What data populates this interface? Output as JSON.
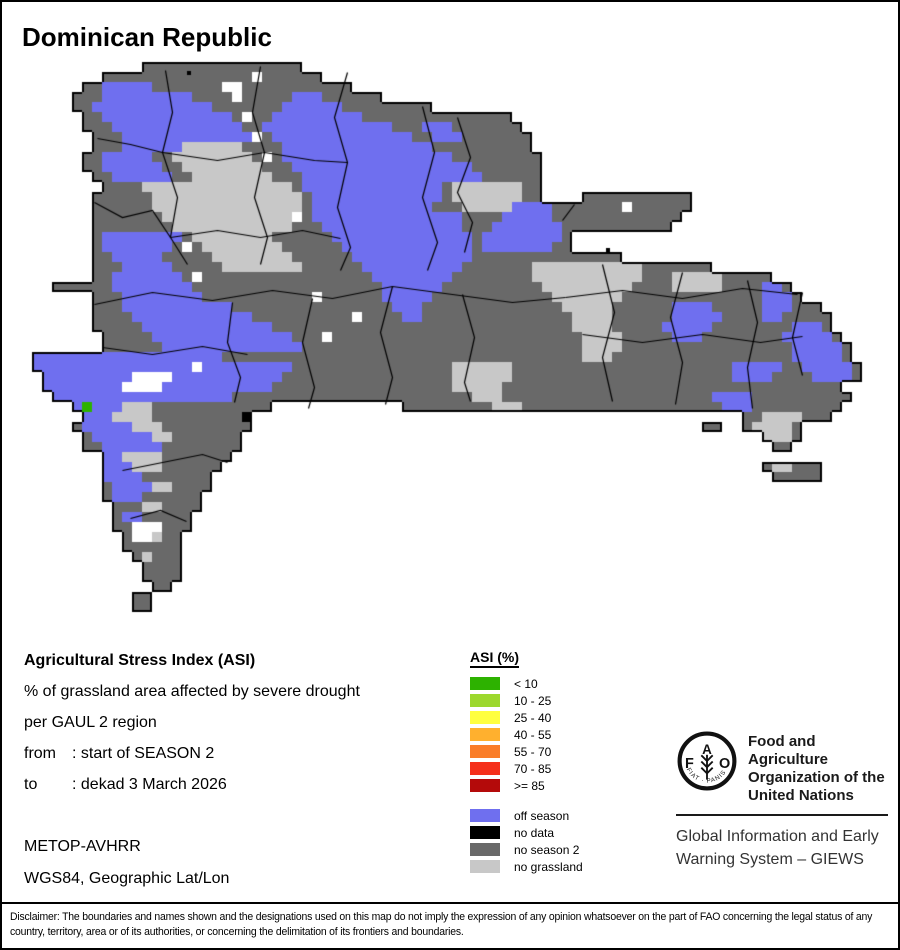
{
  "title": "Dominican Republic",
  "info": {
    "title": "Agricultural Stress Index (ASI)",
    "line1": "% of grassland area affected by severe drought",
    "line2": "per GAUL 2 region",
    "from_label": "from",
    "from_value": ": start of SEASON 2",
    "to_label": "to",
    "to_value": ": dekad 3 March 2026",
    "sensor": "METOP-AVHRR",
    "projection": "WGS84, Geographic Lat/Lon"
  },
  "legend": {
    "title": "ASI (%)",
    "classes": [
      {
        "color": "#2DB200",
        "label": "< 10"
      },
      {
        "color": "#9CD82E",
        "label": "10 - 25"
      },
      {
        "color": "#FFFF40",
        "label": "25 - 40"
      },
      {
        "color": "#FFB02E",
        "label": "40 - 55"
      },
      {
        "color": "#FA7D28",
        "label": "55 - 70"
      },
      {
        "color": "#F5301B",
        "label": "70 - 85"
      },
      {
        "color": "#B40A0A",
        "label": ">= 85"
      }
    ],
    "extra": [
      {
        "color": "#6F6FEF",
        "label": "off season"
      },
      {
        "color": "#000000",
        "label": "no data"
      },
      {
        "color": "#696969",
        "label": "no season 2"
      },
      {
        "color": "#C8C8C8",
        "label": "no grassland"
      }
    ]
  },
  "fao": {
    "letter_f": "F",
    "letter_a": "A",
    "letter_o": "O",
    "motto": "FIAT · PANIS",
    "org_line1": "Food and Agriculture",
    "org_line2": "Organization of the",
    "org_line3": "United Nations",
    "giews_line1": "Global Information and Early",
    "giews_line2": "Warning System – GIEWS"
  },
  "disclaimer": "Disclaimer: The boundaries and names shown and the designations used on this map do not imply the expression of any opinion whatsoever on the part of FAO concerning the legal status of any country, territory, area or of its authorities, or concerning the delimitation of its frontiers and boundaries.",
  "map": {
    "cell": 10,
    "ox": 20,
    "oy": 5,
    "coast_color": "#000000",
    "border_color": "#000000",
    "colors": {
      "D": "#696969",
      "L": "#C8C8C8",
      "B": "#6F6FEF",
      "W": "#FFFFFF",
      "G": "#2DB200",
      "N": "#000000"
    },
    "grid": [
      "............DDDDDDDDDDDDDDDD..........................................................",
      "........DDDDDDDDDDDDDDDWDDDDDD........................................................",
      "......DDBBBBBDDDDDDDWWDDDDDDDDDDD.....................................................",
      ".....DDDBBBBBBBBBDDDDWDDDDDBBBDDDDDD..................................................",
      ".....DDBBBBBBBBBBBBDDDDDDDBBBBBBDDDDDDDDD.............................................",
      "......DDBBBBBBBBBBBBBDWDDBBBBBBBBBDDDDDDDDDDDDDDD.....................................",
      "......DDDBBBBBBBBBBBBBDDBBBBBBBBBBBBBDDDBBBDDDDDDD....................................",
      ".......DDDBBBBBBBBBBBBBWDBBBBBBBBBBBBBBDDBBBDDDDDDD...................................",
      ".......DDDBBBBBBLLLLLLDDDDBBBBBBBBBBBBBBBDDDDDDDDDD...................................",
      "......DDBBBBBDDLLLLLLLLDWDBBBBBBBBBBBBBBBBBDDDDDDDDD..................................",
      "......DDBBBBBBDDLLLLLLLLDDDBBBBBBBBBBBBBBBBBBDDDDDDD..................................",
      ".......DDBBBBBBDDLLLLLLLLDDDBBBBBBBBBBBBBBBBBBDDDDDD..................................",
      "........DDDDLLLLLLLLLLLLLLLDBBBBBBBBBBBBBBDLLLLLLLDD..................................",
      ".......DDDDDDLLLLLLLLLLLLLLLDBBBBBBBBBBBBBDLLLLLLLDD....DDDDDDDDDDD...................",
      ".......DDDDDDLLLLLLLLLLLLLLLDBBBBBBBBBBBBDDDLLLLLBBBBDDDDDDDWDDDDDD...................",
      ".......DDDDDDDLLLLLLLLLLLLLWDBBBBBBBBBBBBBBBDDDDBBBBBDDDDDDDDDDDDD....................",
      ".......DDDDDDDDLLLLLLLLLLLLDDDBBBBBBBBBBBBBBDDDBBBBBBBDDDDDDDDDDD.....................",
      ".......DBBBBBBBBDLLLLLLLLDDDDDDBBBBBBBBBBBBBBDBBBBBBBBD...............................",
      ".......DBBBBBBBDWDLLLLLLLLDDDDDDBBBBBBBBBBBBBDBBBBBBBDD...............................",
      ".......DDBBBBBDDDDDLLLLLLLLDDDDDDBBBBBBBBBBBBDDDDDDDDDDDDDDD..........................",
      ".......DDDBBBBBDDDDDLLLLLLLLDDDDDDBBBBBBBBBBDDDDDDDLLLLLLLLLLLDDDDDDD.................",
      ".......DDBBBBBBBDWDDDDDDDDDDDDDDDDDBBBBBBBBDDDDDDDDLLLLLLLLLLLDDDLLLLLDDDDD...........",
      "...DDDDDDBBBBBBBBDDDDDDDDDDDDDDDDDDDBBBBBBDDDDDDDDDDLLLLLLLLLDDDDLLLLLDDDDBBD.........",
      ".......DDDBBBBBBBBDDDDDDDDDDDWDDDDDDBBBBBDDDDDDDDDDDDLLLLLLLDDDDDDDDDDDDDDBBBD........",
      ".......DDDBBBBBBBBBBBDDDDDDDDDDDDDDDDBBBDDDDDDDDDDDDDDLLLLLDDDDDDBBBBDDDDDBBBDDD......",
      ".......DDDDBBBBBBBBBBBBDDDDDDDDDDWDDDDBBDDDDDDDDDDDDDDDLLLLDDDDDDBBBBBDDDDBBDDDDD.....",
      ".......DDDDDBBBBBBBBBBBBBDDDDDDDDDDDDDDDDDDDDDDDDDDDDDDLLLLDDDDDBBBBBDDDDDDDDBBBD....",
      "........DDDDDBBBBBBBBBBBBBBDDDWDDDDDDDDDDDDDDDDDDDDDDDDDLLLLDDDDDBBBDDDDDDDDBBBBBD...",
      "........DDDDDDBBBBBBBBBBBBBBDDDDDDDDDDDDDDDDDDDDDDDDDDDDLLLLDDDDDDDDDDDDDDDDDBBBBBD..",
      ".BBBBBBBBBBBBBBBBBBBDDDDDDDDDDDDDDDDDDDDDDDDDDDDDDDDDDDDLLLDDDDDDDDDDDDDDDDDDBBBBBD..",
      ".BBBBBBBBBBBBBBBBWBBBBBBBBBDDDDDDDDDDDDDDDDLLLLLLDDDDDDDDDDDDDDDDDDDDDDBBBBBDDBBBBBD.",
      "..BBBBBBBBBWWWWBBBBBBBBBBBDDDDDDDDDDDDDDDDDLLLLLLDDDDDDDDDDDDDDDDDDDDDDBBBBDDDDBBBBD.",
      "..BBBBBBBBWWWWBBBBBBBBBBBDDDDDDDDDDDDDDDDDDLLLLLDDDDDDDDDDDDDDDDDDDDDDDDDDDDDDDDDD...",
      "...BBBBBBBBBBBBBBBBBBDDDDDDDDDDDDDDDDDDDDDDDDLLLDDDDDDDDDDDDDDDDDDDDDBBBBDDDDDDDDDD..",
      ".....BGBBBLLLDDDDDDDDDDDD.............DDDDDDDDDLLLDDDDDDDDDDDDDDDDDDDDBBBDDDDDDDDD....",
      "......BBBLLLLDDDDDDDDDN.................................................DDLLLLDDD.....",
      ".....DBBBBBLLLDDDDDDDDD.............................................DD..DLLLLD........",
      "......DBBBBBBLLDDDDDDD....................................................LLLD........",
      "......DDBBBBBBDDDDDDDD.....................................................DD.........",
      "........BBLLLLDDDDDDD.................................................................",
      "........BBBLLLDDDDDD......................................................DLLDDD......",
      "........BBBBDDDDDDD........................................................DDDDD......",
      "........DBBBBLLDDDD...................................................................",
      "........DBBBDDDDDD....................................................................",
      ".........DDDLLDDDD....................................................................",
      ".........DBBDDDDD.....................................................................",
      ".........DDWWWDDD.....................................................................",
      "..........DWWLDD......................................................................",
      "..........DDDDDD......................................................................",
      "...........DLDDD......................................................................",
      "............DDDD......................................................................",
      "............DDDD......................................................................",
      ".............DD.......................................................................",
      "...........DD.........................................................................",
      "...........DD.........................................................................",
      "......................................................................................",
      "......................................................................................",
      "......................................................................................"
    ],
    "borders": [
      [
        [
          163,
          68
        ],
        [
          170,
          110
        ],
        [
          160,
          150
        ],
        [
          175,
          195
        ],
        [
          168,
          235
        ],
        [
          185,
          262
        ]
      ],
      [
        [
          258,
          64
        ],
        [
          250,
          110
        ],
        [
          262,
          150
        ],
        [
          252,
          195
        ],
        [
          265,
          235
        ],
        [
          258,
          262
        ]
      ],
      [
        [
          345,
          70
        ],
        [
          332,
          115
        ],
        [
          345,
          160
        ],
        [
          335,
          205
        ],
        [
          348,
          245
        ],
        [
          338,
          268
        ]
      ],
      [
        [
          420,
          104
        ],
        [
          432,
          150
        ],
        [
          420,
          195
        ],
        [
          435,
          240
        ],
        [
          425,
          268
        ]
      ],
      [
        [
          455,
          115
        ],
        [
          468,
          155
        ],
        [
          455,
          190
        ],
        [
          470,
          220
        ],
        [
          462,
          250
        ]
      ],
      [
        [
          95,
          136
        ],
        [
          128,
          142
        ],
        [
          160,
          150
        ]
      ],
      [
        [
          160,
          150
        ],
        [
          215,
          158
        ],
        [
          262,
          150
        ],
        [
          312,
          158
        ],
        [
          345,
          160
        ]
      ],
      [
        [
          168,
          235
        ],
        [
          215,
          228
        ],
        [
          258,
          235
        ],
        [
          300,
          228
        ],
        [
          338,
          236
        ]
      ],
      [
        [
          92,
          302
        ],
        [
          150,
          290
        ],
        [
          210,
          298
        ],
        [
          270,
          288
        ],
        [
          330,
          296
        ],
        [
          390,
          284
        ],
        [
          450,
          292
        ],
        [
          510,
          300
        ],
        [
          563,
          295
        ]
      ],
      [
        [
          230,
          300
        ],
        [
          225,
          340
        ],
        [
          238,
          375
        ],
        [
          232,
          400
        ]
      ],
      [
        [
          310,
          296
        ],
        [
          300,
          340
        ],
        [
          312,
          385
        ],
        [
          306,
          406
        ]
      ],
      [
        [
          390,
          284
        ],
        [
          378,
          330
        ],
        [
          390,
          375
        ],
        [
          383,
          402
        ]
      ],
      [
        [
          460,
          292
        ],
        [
          472,
          335
        ],
        [
          462,
          380
        ],
        [
          468,
          399
        ]
      ],
      [
        [
          100,
          345
        ],
        [
          150,
          352
        ],
        [
          200,
          344
        ],
        [
          245,
          352
        ]
      ],
      [
        [
          92,
          200
        ],
        [
          120,
          215
        ],
        [
          150,
          208
        ],
        [
          168,
          235
        ]
      ],
      [
        [
          120,
          468
        ],
        [
          160,
          460
        ],
        [
          200,
          452
        ],
        [
          225,
          460
        ]
      ],
      [
        [
          128,
          516
        ],
        [
          158,
          508
        ],
        [
          184,
          519
        ]
      ],
      [
        [
          600,
          262
        ],
        [
          612,
          310
        ],
        [
          600,
          355
        ],
        [
          610,
          399
        ]
      ],
      [
        [
          680,
          270
        ],
        [
          668,
          315
        ],
        [
          680,
          360
        ],
        [
          673,
          402
        ]
      ],
      [
        [
          745,
          278
        ],
        [
          755,
          320
        ],
        [
          745,
          365
        ],
        [
          750,
          406
        ]
      ],
      [
        [
          800,
          290
        ],
        [
          790,
          335
        ],
        [
          800,
          373
        ]
      ],
      [
        [
          563,
          295
        ],
        [
          620,
          288
        ],
        [
          680,
          296
        ],
        [
          740,
          286
        ],
        [
          795,
          292
        ]
      ],
      [
        [
          580,
          332
        ],
        [
          640,
          340
        ],
        [
          700,
          332
        ],
        [
          758,
          340
        ],
        [
          800,
          334
        ]
      ],
      [
        [
          560,
          218
        ],
        [
          572,
          202
        ]
      ]
    ],
    "specks": [
      [
        185,
        69
      ],
      [
        604,
        246
      ]
    ]
  }
}
